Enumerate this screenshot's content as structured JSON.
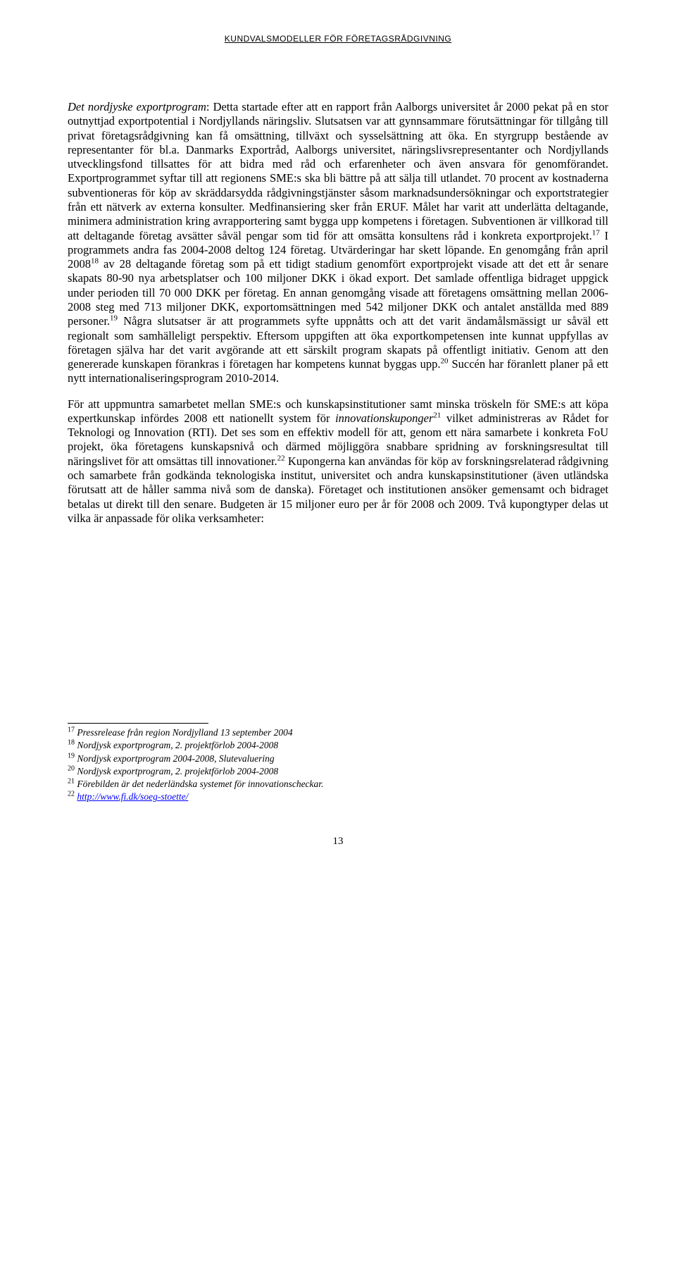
{
  "header": "KUNDVALSMODELLER FÖR FÖRETAGSRÅDGIVNING",
  "para1_lead": "Det nordjyske exportprogram",
  "para1_body": ": Detta startade efter att en rapport från Aalborgs universitet år 2000 pekat på en stor outnyttjad exportpotential i Nordjyllands näringsliv. Slutsatsen var att gynnsammare förutsättningar för tillgång till privat företagsrådgivning kan få omsättning, tillväxt och sysselsättning att öka. En styrgrupp bestående av representanter för bl.a. Danmarks Exportråd, Aalborgs universitet, näringslivsrepresentanter och Nordjyllands utvecklingsfond tillsattes för att bidra med råd och erfarenheter och även ansvara för genomförandet. Exportprogrammet syftar till att regionens SME:s ska bli bättre på att sälja till utlandet. 70 procent av kostnaderna subventioneras för köp av skräddarsydda rådgivningstjänster såsom marknadsundersökningar och exportstrategier från ett nätverk av externa konsulter. Medfinansiering sker från ERUF. Målet har varit att underlätta deltagande, minimera administration kring avrapportering samt bygga upp kompetens i företagen. Subventionen är villkorad till att deltagande företag avsätter såväl pengar som tid för att omsätta konsultens råd i konkreta exportprojekt.",
  "para1_after17a": " I programmets andra fas 2004-2008 deltog 124 företag. Utvärderingar har skett löpande. En genomgång från april 2008",
  "para1_after18": " av 28 deltagande företag som på ett tidigt stadium genomfört exportprojekt visade att det ett år senare skapats 80-90 nya arbetsplatser och 100 miljoner DKK i ökad export. Det samlade offentliga bidraget uppgick under perioden till 70 000 DKK per företag. En annan genomgång visade att företagens omsättning mellan 2006-2008 steg med 713 miljoner DKK, exportomsättningen med 542 miljoner DKK och antalet anställda med 889 personer.",
  "para1_after19": " Några slutsatser är att programmets syfte uppnåtts och att det varit ändamålsmässigt ur såväl ett regionalt som samhälleligt perspektiv. Eftersom uppgiften att öka exportkompetensen inte kunnat uppfyllas av företagen själva har det varit avgörande att ett särskilt program skapats på offentligt initiativ. Genom att den genererade kunskapen förankras i företagen har kompetens kunnat byggas upp.",
  "para1_after20": " Succén har föranlett planer på ett nytt internationaliseringsprogram 2010-2014.",
  "para2_a": "För att uppmuntra samarbetet mellan SME:s och kunskapsinstitutioner samt minska tröskeln för SME:s att köpa expertkunskap infördes 2008 ett nationellt system för ",
  "para2_italic": "innovationskuponger",
  "para2_after21": " vilket administreras av Rådet for Teknologi og Innovation (RTI). Det ses som en effektiv modell för att, genom ett nära samarbete i konkreta FoU projekt, öka företagens kunskapsnivå och därmed möjliggöra snabbare spridning av forskningsresultat till näringslivet för att omsättas till innovationer.",
  "para2_after22": " Kupongerna kan användas för köp av forskningsrelaterad rådgivning och samarbete från godkända teknologiska institut, universitet och andra kunskapsinstitutioner (även utländska förutsatt att de håller samma nivå som de danska). Företaget och institutionen ansöker gemensamt och bidraget betalas ut direkt till den senare. Budgeten är 15 miljoner euro per år för 2008 och 2009. Två kupongtyper delas ut vilka är anpassade för olika verksamheter:",
  "fn17": " Pressrelease från region Nordjylland 13 september 2004",
  "fn18": " Nordjysk exportprogram, 2. projektförlob 2004-2008",
  "fn19": " Nordjysk exportprogram 2004-2008, Slutevaluering",
  "fn20": " Nordjysk exportprogram, 2. projektförlob 2004-2008",
  "fn21": " Förebilden är det nederländska systemet för innovationscheckar.",
  "fn22_link": "http://www.fi.dk/soeg-stoette/",
  "sup17": "17",
  "sup18": "18",
  "sup19": "19",
  "sup20": "20",
  "sup21": "21",
  "sup22": "22",
  "page_number": "13"
}
